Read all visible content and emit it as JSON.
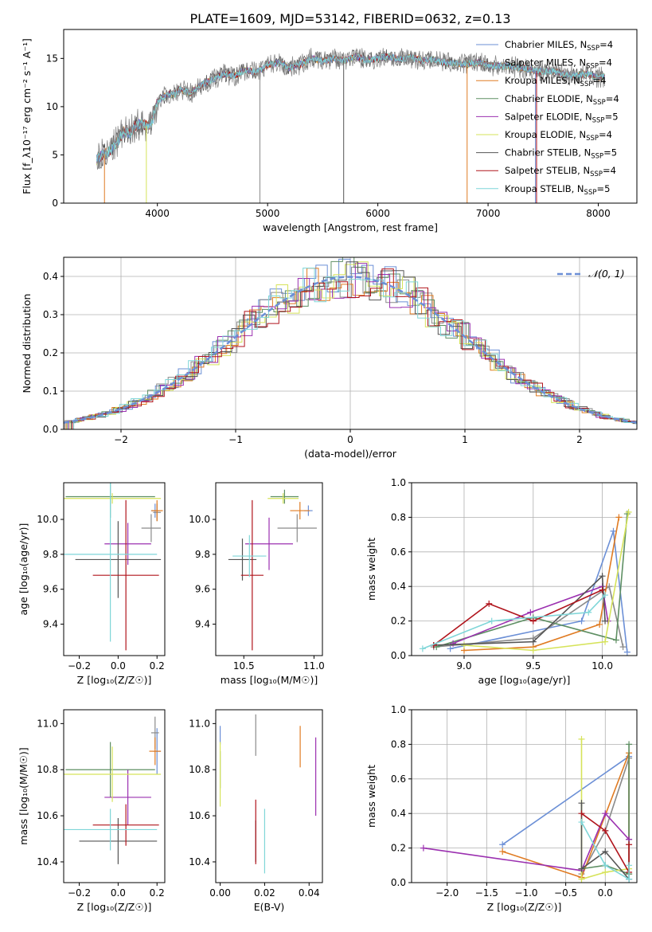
{
  "figure": {
    "title": "PLATE=1609, MJD=53142, FIBERID=0632, z=0.13"
  },
  "series_styles": [
    {
      "name": "Chabrier MILES",
      "nssp": "4",
      "color": "#6b8fd6"
    },
    {
      "name": "Salpeter MILES",
      "nssp": "4",
      "color": "#8a8a8a"
    },
    {
      "name": "Kroupa MILES",
      "nssp": "4",
      "color": "#e07b22"
    },
    {
      "name": "Chabrier ELODIE",
      "nssp": "4",
      "color": "#5e8f63"
    },
    {
      "name": "Salpeter ELODIE",
      "nssp": "5",
      "color": "#9b30b0"
    },
    {
      "name": "Kroupa ELODIE",
      "nssp": "4",
      "color": "#d6e35a"
    },
    {
      "name": "Chabrier STELIB",
      "nssp": "5",
      "color": "#555555"
    },
    {
      "name": "Salpeter STELIB",
      "nssp": "4",
      "color": "#b0141c"
    },
    {
      "name": "Kroupa STELIB",
      "nssp": "5",
      "color": "#7fd6d8"
    }
  ],
  "chart_data": [
    {
      "id": "spectrum",
      "type": "line",
      "xlabel": "wavelength [Angstrom, rest frame]",
      "ylabel": "Flux [f_λ10⁻¹⁷ erg cm⁻² s⁻¹ A⁻¹]",
      "xlim": [
        3150,
        8350
      ],
      "ylim": [
        0,
        18
      ],
      "xticks": [
        4000,
        5000,
        6000,
        7000,
        8000
      ],
      "yticks": [
        0,
        5,
        10,
        15
      ],
      "legend_position": "top-right",
      "data_spectrum": {
        "x": [
          3450,
          3500,
          3550,
          3600,
          3650,
          3700,
          3750,
          3800,
          3850,
          3900,
          3950,
          4000,
          4050,
          4100,
          4150,
          4200,
          4300,
          4400,
          4500,
          4600,
          4700,
          4800,
          4900,
          5000,
          5100,
          5200,
          5300,
          5400,
          5500,
          5600,
          5700,
          5800,
          5900,
          6000,
          6100,
          6200,
          6300,
          6400,
          6500,
          6600,
          6700,
          6800,
          6900,
          7000,
          7100,
          7200,
          7300,
          7400,
          7500,
          7600,
          7700,
          7800,
          7900,
          8000,
          8060
        ],
        "y": [
          4.5,
          5.0,
          5.2,
          5.8,
          6.6,
          7.5,
          7.2,
          8.0,
          8.3,
          8.0,
          8.4,
          10.5,
          11.0,
          11.3,
          11.2,
          11.8,
          11.4,
          12.3,
          12.8,
          13.4,
          13.2,
          13.8,
          13.6,
          14.3,
          14.6,
          14.0,
          14.4,
          15.0,
          14.7,
          15.0,
          14.8,
          15.2,
          14.8,
          15.0,
          15.2,
          14.9,
          15.1,
          14.8,
          14.9,
          14.6,
          14.5,
          14.4,
          14.6,
          14.3,
          14.2,
          14.2,
          14.0,
          13.8,
          13.6,
          13.7,
          13.3,
          13.2,
          13.4,
          13.0,
          13.1
        ]
      }
    },
    {
      "id": "residuals",
      "type": "histogram",
      "xlabel": "(data-model)/error",
      "ylabel": "Normed distribution",
      "xlim": [
        -2.5,
        2.5
      ],
      "ylim": [
        0,
        0.45
      ],
      "xticks": [
        -2,
        -1,
        0,
        1,
        2
      ],
      "yticks": [
        0.0,
        0.1,
        0.2,
        0.3,
        0.4
      ],
      "grid": true,
      "reference_curve": "𝒩(0, 1)",
      "legend_position": "top-right"
    },
    {
      "id": "age_vs_Z",
      "type": "errorbar",
      "xlabel": "Z [log₁₀(Z/Z☉)]",
      "ylabel": "age  [log₁₀(age/yr)]",
      "xlim": [
        -0.28,
        0.24
      ],
      "ylim": [
        9.22,
        10.21
      ],
      "xticks": [
        -0.2,
        0.0,
        0.2
      ],
      "yticks": [
        9.4,
        9.6,
        9.8,
        10.0
      ],
      "points": [
        {
          "series": 0,
          "x": 0.19,
          "y": 10.05,
          "xerr": 0.02,
          "yerr": 0.04
        },
        {
          "series": 1,
          "x": 0.2,
          "y": 10.04,
          "xerr": 0.02,
          "yerr": 0.05
        },
        {
          "series": 2,
          "x": 0.2,
          "y": 10.05,
          "xerr": 0.03,
          "yerr": 0.06
        },
        {
          "series": 3,
          "x": -0.04,
          "y": 10.13,
          "xerr": 0.23,
          "yerr": 0.12
        },
        {
          "series": 4,
          "x": 0.05,
          "y": 9.86,
          "xerr": 0.12,
          "yerr": 0.12
        },
        {
          "series": 5,
          "x": -0.03,
          "y": 10.12,
          "xerr": 0.25,
          "yerr": 0.03
        },
        {
          "series": 6,
          "x": 0.0,
          "y": 9.77,
          "xerr": 0.22,
          "yerr": 0.22
        },
        {
          "series": 7,
          "x": 0.04,
          "y": 9.68,
          "xerr": 0.17,
          "yerr": 0.43
        },
        {
          "series": 8,
          "x": -0.04,
          "y": 9.8,
          "xerr": 0.24,
          "yerr": 0.5
        },
        {
          "series": 1,
          "x": 0.17,
          "y": 9.95,
          "xerr": 0.05,
          "yerr": 0.08
        }
      ]
    },
    {
      "id": "age_vs_mass",
      "type": "errorbar",
      "xlabel": "mass [log₁₀(M/M☉)]",
      "ylabel": "",
      "xlim": [
        10.3,
        11.06
      ],
      "ylim": [
        9.22,
        10.21
      ],
      "xticks": [
        10.5,
        11.0
      ],
      "yticks": [
        9.4,
        9.6,
        9.8,
        10.0
      ],
      "points": [
        {
          "series": 0,
          "x": 10.96,
          "y": 10.05,
          "xerr": 0.03,
          "yerr": 0.03
        },
        {
          "series": 1,
          "x": 10.88,
          "y": 9.95,
          "xerr": 0.14,
          "yerr": 0.08
        },
        {
          "series": 2,
          "x": 10.9,
          "y": 10.05,
          "xerr": 0.07,
          "yerr": 0.05
        },
        {
          "series": 3,
          "x": 10.79,
          "y": 10.13,
          "xerr": 0.1,
          "yerr": 0.04
        },
        {
          "series": 4,
          "x": 10.68,
          "y": 9.86,
          "xerr": 0.17,
          "yerr": 0.15
        },
        {
          "series": 5,
          "x": 10.78,
          "y": 10.12,
          "xerr": 0.11,
          "yerr": 0.03
        },
        {
          "series": 6,
          "x": 10.49,
          "y": 9.77,
          "xerr": 0.1,
          "yerr": 0.12
        },
        {
          "series": 7,
          "x": 10.56,
          "y": 9.68,
          "xerr": 0.08,
          "yerr": 0.43
        },
        {
          "series": 8,
          "x": 10.54,
          "y": 9.79,
          "xerr": 0.12,
          "yerr": 0.12
        }
      ]
    },
    {
      "id": "weight_vs_age",
      "type": "line",
      "xlabel": "age  [log₁₀(age/yr)]",
      "ylabel": "mass weight",
      "xlim": [
        8.62,
        10.25
      ],
      "ylim": [
        0,
        1.0
      ],
      "xticks": [
        9.0,
        9.5,
        10.0
      ],
      "yticks": [
        0.0,
        0.2,
        0.4,
        0.6,
        0.8,
        1.0
      ],
      "grid": true,
      "series": [
        {
          "series": 0,
          "x": [
            8.9,
            9.85,
            10.08,
            10.18
          ],
          "y": [
            0.04,
            0.2,
            0.72,
            0.02
          ]
        },
        {
          "series": 1,
          "x": [
            8.78,
            9.5,
            10.05,
            10.15
          ],
          "y": [
            0.05,
            0.1,
            0.4,
            0.05
          ]
        },
        {
          "series": 2,
          "x": [
            9.0,
            9.5,
            9.98,
            10.12
          ],
          "y": [
            0.03,
            0.05,
            0.18,
            0.8
          ]
        },
        {
          "series": 3,
          "x": [
            8.8,
            9.5,
            10.1,
            10.18
          ],
          "y": [
            0.05,
            0.22,
            0.09,
            0.82
          ]
        },
        {
          "series": 4,
          "x": [
            8.92,
            9.48,
            10.0,
            10.04
          ],
          "y": [
            0.07,
            0.25,
            0.4,
            0.2
          ]
        },
        {
          "series": 5,
          "x": [
            9.0,
            9.5,
            10.02,
            10.19
          ],
          "y": [
            0.06,
            0.03,
            0.08,
            0.83
          ]
        },
        {
          "series": 6,
          "x": [
            8.78,
            9.5,
            10.0,
            10.02
          ],
          "y": [
            0.06,
            0.08,
            0.46,
            0.2
          ]
        },
        {
          "series": 7,
          "x": [
            8.78,
            9.18,
            9.5,
            10.0
          ],
          "y": [
            0.06,
            0.3,
            0.2,
            0.38
          ]
        },
        {
          "series": 8,
          "x": [
            8.7,
            9.2,
            9.9,
            10.02
          ],
          "y": [
            0.04,
            0.2,
            0.25,
            0.35
          ]
        }
      ]
    },
    {
      "id": "mass_vs_Z",
      "type": "errorbar",
      "xlabel": "Z [log₁₀(Z/Z☉)]",
      "ylabel": "mass [log₁₀(M/M☉)]",
      "xlim": [
        -0.28,
        0.24
      ],
      "ylim": [
        10.31,
        11.06
      ],
      "xticks": [
        -0.2,
        0.0,
        0.2
      ],
      "yticks": [
        10.4,
        10.6,
        10.8,
        11.0
      ],
      "points": [
        {
          "series": 0,
          "x": 0.2,
          "y": 10.88,
          "xerr": 0.02,
          "yerr": 0.1
        },
        {
          "series": 1,
          "x": 0.19,
          "y": 10.96,
          "xerr": 0.02,
          "yerr": 0.07
        },
        {
          "series": 2,
          "x": 0.19,
          "y": 10.88,
          "xerr": 0.03,
          "yerr": 0.06
        },
        {
          "series": 3,
          "x": -0.04,
          "y": 10.8,
          "xerr": 0.23,
          "yerr": 0.12
        },
        {
          "series": 4,
          "x": 0.05,
          "y": 10.68,
          "xerr": 0.12,
          "yerr": 0.12
        },
        {
          "series": 5,
          "x": -0.03,
          "y": 10.78,
          "xerr": 0.25,
          "yerr": 0.12
        },
        {
          "series": 6,
          "x": 0.0,
          "y": 10.49,
          "xerr": 0.2,
          "yerr": 0.1
        },
        {
          "series": 7,
          "x": 0.04,
          "y": 10.56,
          "xerr": 0.17,
          "yerr": 0.09
        },
        {
          "series": 8,
          "x": -0.04,
          "y": 10.54,
          "xerr": 0.24,
          "yerr": 0.09
        }
      ]
    },
    {
      "id": "mass_vs_ebv",
      "type": "errorbar",
      "xlabel": "E(B-V)",
      "ylabel": "",
      "xlim": [
        -0.002,
        0.046
      ],
      "ylim": [
        10.31,
        11.06
      ],
      "xticks": [
        0.0,
        0.02,
        0.04
      ],
      "yticks": [
        10.4,
        10.6,
        10.8,
        11.0
      ],
      "points": [
        {
          "series": 0,
          "x": 0.0,
          "y": 10.95,
          "xerr": 0.0,
          "yerr": 0.04
        },
        {
          "series": 1,
          "x": 0.016,
          "y": 10.95,
          "xerr": 0.0,
          "yerr": 0.09
        },
        {
          "series": 2,
          "x": 0.036,
          "y": 10.9,
          "xerr": 0.0,
          "yerr": 0.09
        },
        {
          "series": 3,
          "x": 0.0,
          "y": 10.8,
          "xerr": 0.0,
          "yerr": 0.08
        },
        {
          "series": 4,
          "x": 0.043,
          "y": 10.77,
          "xerr": 0.0,
          "yerr": 0.17
        },
        {
          "series": 5,
          "x": 0.0,
          "y": 10.78,
          "xerr": 0.0,
          "yerr": 0.14
        },
        {
          "series": 6,
          "x": 0.016,
          "y": 10.49,
          "xerr": 0.0,
          "yerr": 0.09
        },
        {
          "series": 7,
          "x": 0.016,
          "y": 10.53,
          "xerr": 0.0,
          "yerr": 0.14
        },
        {
          "series": 8,
          "x": 0.02,
          "y": 10.49,
          "xerr": 0.0,
          "yerr": 0.14
        }
      ]
    },
    {
      "id": "weight_vs_Z",
      "type": "line",
      "xlabel": "Z [log₁₀(Z/Z☉)]",
      "ylabel": "mass weight",
      "xlim": [
        -2.45,
        0.4
      ],
      "ylim": [
        0,
        1.0
      ],
      "xticks": [
        -2.0,
        -1.5,
        -1.0,
        -0.5,
        0.0
      ],
      "yticks": [
        0.0,
        0.2,
        0.4,
        0.6,
        0.8,
        1.0
      ],
      "grid": true,
      "series": [
        {
          "series": 0,
          "x": [
            -1.3,
            0.3,
            0.3,
            0.3
          ],
          "y": [
            0.22,
            0.73,
            0.05,
            0.02
          ]
        },
        {
          "series": 1,
          "x": [
            -0.3,
            0.0,
            0.3,
            0.3
          ],
          "y": [
            0.05,
            0.3,
            0.72,
            0.25
          ]
        },
        {
          "series": 2,
          "x": [
            -1.3,
            -0.3,
            0.3,
            0.3
          ],
          "y": [
            0.18,
            0.03,
            0.75,
            0.05
          ]
        },
        {
          "series": 3,
          "x": [
            -0.3,
            0.0,
            0.3,
            0.3
          ],
          "y": [
            0.08,
            0.1,
            0.05,
            0.8
          ]
        },
        {
          "series": 4,
          "x": [
            -2.3,
            -0.3,
            0.0,
            0.3
          ],
          "y": [
            0.2,
            0.07,
            0.4,
            0.25
          ]
        },
        {
          "series": 5,
          "x": [
            -0.3,
            -0.3,
            0.0,
            0.3
          ],
          "y": [
            0.83,
            0.02,
            0.06,
            0.08
          ]
        },
        {
          "series": 6,
          "x": [
            -0.3,
            -0.3,
            0.0,
            0.3
          ],
          "y": [
            0.46,
            0.08,
            0.18,
            0.02
          ]
        },
        {
          "series": 7,
          "x": [
            -0.3,
            0.0,
            0.3,
            0.3
          ],
          "y": [
            0.4,
            0.3,
            0.06,
            0.22
          ]
        },
        {
          "series": 8,
          "x": [
            -0.3,
            0.0,
            0.3,
            0.3
          ],
          "y": [
            0.35,
            0.1,
            0.02,
            0.1
          ]
        }
      ]
    }
  ]
}
